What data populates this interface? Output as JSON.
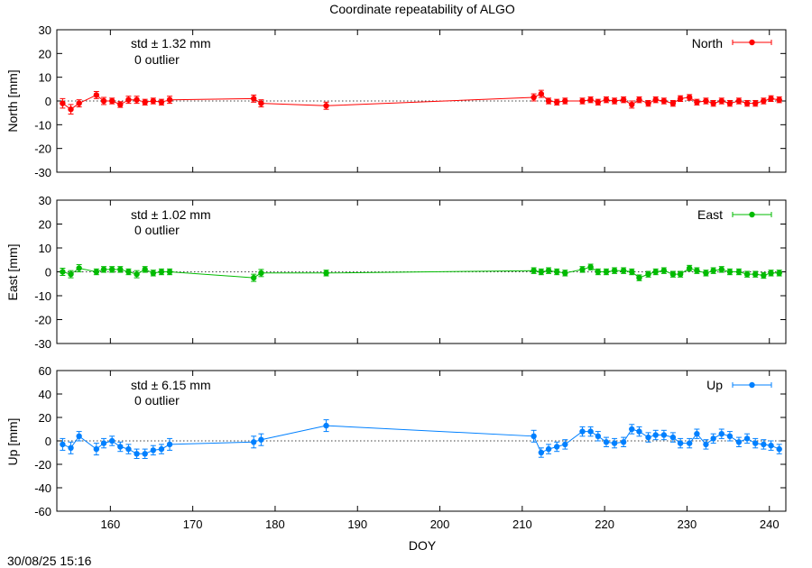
{
  "chart_data": {
    "type": "scatter",
    "title": "Coordinate repeatability of ALGO",
    "xlabel": "DOY",
    "xlim": [
      153.5,
      242
    ],
    "x_ticks": [
      160,
      170,
      180,
      190,
      200,
      210,
      220,
      230,
      240
    ],
    "timestamp": "30/08/25 15:16",
    "panels": [
      {
        "name": "North",
        "ylabel": "North [mm]",
        "ylim": [
          -30,
          30
        ],
        "y_ticks": [
          30,
          20,
          10,
          0,
          -10,
          -20,
          -30
        ],
        "color": "#ff0000",
        "std_text": "std ± 1.32 mm",
        "outlier_text": "0 outlier",
        "legend": "North",
        "x": [
          154.2,
          155.2,
          156.2,
          158.3,
          159.2,
          160.2,
          161.2,
          162.2,
          163.2,
          164.2,
          165.2,
          166.2,
          167.2,
          177.4,
          178.3,
          186.2,
          211.4,
          212.3,
          213.2,
          214.2,
          215.2,
          217.3,
          218.3,
          219.2,
          220.2,
          221.2,
          222.3,
          223.3,
          224.2,
          225.3,
          226.2,
          227.2,
          228.3,
          229.2,
          230.3,
          231.2,
          232.3,
          233.2,
          234.2,
          235.2,
          236.3,
          237.3,
          238.3,
          239.3,
          240.2,
          241.2
        ],
        "y": [
          -1,
          -3.5,
          -1,
          2.5,
          0,
          0,
          -1.5,
          0.5,
          0.5,
          -0.5,
          0,
          -0.5,
          0.5,
          1,
          -1,
          -2,
          1.5,
          3,
          0,
          -0.5,
          0,
          0,
          0.5,
          -0.5,
          0.5,
          0,
          0.5,
          -1.5,
          0.5,
          -1,
          0.5,
          0,
          -1,
          1,
          1.5,
          -0.5,
          0,
          -1,
          0,
          -1,
          0,
          -1,
          -1,
          0,
          1,
          0.5
        ],
        "err": [
          2,
          2,
          1.5,
          1.5,
          1.5,
          1.2,
          1.2,
          1.5,
          1.5,
          1.2,
          1.2,
          1.2,
          1.5,
          1.5,
          1.5,
          1.5,
          1.5,
          1.5,
          1.2,
          1.2,
          1.2,
          1.2,
          1.2,
          1.2,
          1.2,
          1.2,
          1.2,
          1.5,
          1.2,
          1.2,
          1.2,
          1.2,
          1.2,
          1.2,
          1.2,
          1.2,
          1.2,
          1.2,
          1.2,
          1.2,
          1.2,
          1.2,
          1.2,
          1.2,
          1.2,
          1.2
        ]
      },
      {
        "name": "East",
        "ylabel": "East [mm]",
        "ylim": [
          -30,
          30
        ],
        "y_ticks": [
          30,
          20,
          10,
          0,
          -10,
          -20,
          -30
        ],
        "color": "#00bb00",
        "std_text": "std ± 1.02 mm",
        "outlier_text": "0 outlier",
        "legend": "East",
        "x": [
          154.2,
          155.2,
          156.2,
          158.3,
          159.2,
          160.2,
          161.2,
          162.2,
          163.2,
          164.2,
          165.2,
          166.2,
          167.2,
          177.4,
          178.3,
          186.2,
          211.4,
          212.3,
          213.2,
          214.2,
          215.2,
          217.3,
          218.3,
          219.2,
          220.2,
          221.2,
          222.3,
          223.3,
          224.2,
          225.3,
          226.2,
          227.2,
          228.3,
          229.2,
          230.3,
          231.2,
          232.3,
          233.2,
          234.2,
          235.2,
          236.3,
          237.3,
          238.3,
          239.3,
          240.2,
          241.2
        ],
        "y": [
          0,
          -1,
          1.5,
          0,
          1,
          1,
          1,
          0,
          -1,
          1,
          -0.5,
          0,
          0,
          -2.5,
          -0.5,
          -0.5,
          0.5,
          0,
          0.5,
          0,
          -0.5,
          1,
          2,
          0,
          0,
          0.5,
          0.5,
          0,
          -2.5,
          -1,
          0,
          0.5,
          -1,
          -1,
          1.5,
          0.5,
          -0.5,
          0.5,
          1,
          0,
          0,
          -1,
          -1,
          -1.5,
          -0.5,
          -0.5
        ],
        "err": [
          1.5,
          1.5,
          1.5,
          1.2,
          1.2,
          1.2,
          1.2,
          1.2,
          1.5,
          1.2,
          1.2,
          1.2,
          1.2,
          1.5,
          1.5,
          1.2,
          1.2,
          1.2,
          1.2,
          1.2,
          1.2,
          1.2,
          1.2,
          1.2,
          1.2,
          1.2,
          1.2,
          1.2,
          1.2,
          1.2,
          1.2,
          1.2,
          1.2,
          1.2,
          1.2,
          1.2,
          1.2,
          1.2,
          1.2,
          1.2,
          1.2,
          1.2,
          1.2,
          1.2,
          1.2,
          1.2
        ]
      },
      {
        "name": "Up",
        "ylabel": "Up [mm]",
        "ylim": [
          -60,
          60
        ],
        "y_ticks": [
          60,
          40,
          20,
          0,
          -20,
          -40,
          -60
        ],
        "color": "#0080ff",
        "std_text": "std ± 6.15 mm",
        "outlier_text": "0 outlier",
        "legend": "Up",
        "x": [
          154.2,
          155.2,
          156.2,
          158.3,
          159.2,
          160.2,
          161.2,
          162.2,
          163.2,
          164.2,
          165.2,
          166.2,
          167.2,
          177.4,
          178.3,
          186.2,
          211.4,
          212.3,
          213.2,
          214.2,
          215.2,
          217.3,
          218.3,
          219.2,
          220.2,
          221.2,
          222.3,
          223.3,
          224.2,
          225.3,
          226.2,
          227.2,
          228.3,
          229.2,
          230.3,
          231.2,
          232.3,
          233.2,
          234.2,
          235.2,
          236.3,
          237.3,
          238.3,
          239.3,
          240.2,
          241.2
        ],
        "y": [
          -3,
          -6,
          4,
          -7,
          -2,
          0,
          -5,
          -7,
          -11,
          -11,
          -8,
          -7,
          -3,
          -1,
          1,
          13,
          4,
          -10,
          -7,
          -5,
          -3,
          8,
          8,
          4,
          -1,
          -2,
          -1,
          10,
          8,
          3,
          5,
          5,
          3,
          -2,
          -2,
          6,
          -3,
          2,
          6,
          4,
          -1,
          2,
          -2,
          -3,
          -4,
          -7
        ],
        "err": [
          5,
          5,
          4,
          5,
          4,
          4,
          4,
          4,
          4,
          4,
          4,
          4,
          5,
          5,
          5,
          5,
          5,
          4,
          4,
          4,
          4,
          4,
          4,
          4,
          4,
          4,
          4,
          4,
          4,
          4,
          4,
          4,
          4,
          4,
          4,
          4,
          4,
          4,
          4,
          4,
          4,
          4,
          4,
          4,
          4,
          4
        ]
      }
    ]
  }
}
